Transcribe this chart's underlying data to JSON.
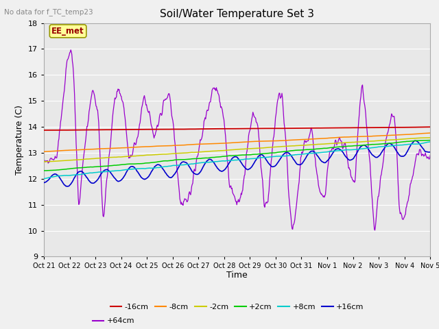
{
  "title": "Soil/Water Temperature Set 3",
  "xlabel": "Time",
  "ylabel": "Temperature (C)",
  "note": "No data for f_TC_temp23",
  "annotation": "EE_met",
  "ylim": [
    9.0,
    18.0
  ],
  "yticks": [
    9.0,
    10.0,
    11.0,
    12.0,
    13.0,
    14.0,
    15.0,
    16.0,
    17.0,
    18.0
  ],
  "xtick_labels": [
    "Oct 21",
    "Oct 22",
    "Oct 23",
    "Oct 24",
    "Oct 25",
    "Oct 26",
    "Oct 27",
    "Oct 28",
    "Oct 29",
    "Oct 30",
    "Oct 31",
    "Nov 1",
    "Nov 2",
    "Nov 3",
    "Nov 4",
    "Nov 5"
  ],
  "series_colors": [
    "#cc0000",
    "#ff8800",
    "#cccc00",
    "#00cc00",
    "#00cccc",
    "#0000cc",
    "#9900cc"
  ],
  "series_labels": [
    "-16cm",
    "-8cm",
    "-2cm",
    "+2cm",
    "+8cm",
    "+16cm",
    "+64cm"
  ],
  "bg_color": "#e8e8e8",
  "fig_bg": "#f0f0f0",
  "grid_color": "#ffffff",
  "annotation_bg": "#ffff99",
  "annotation_edge": "#999900",
  "annotation_text_color": "#990000"
}
